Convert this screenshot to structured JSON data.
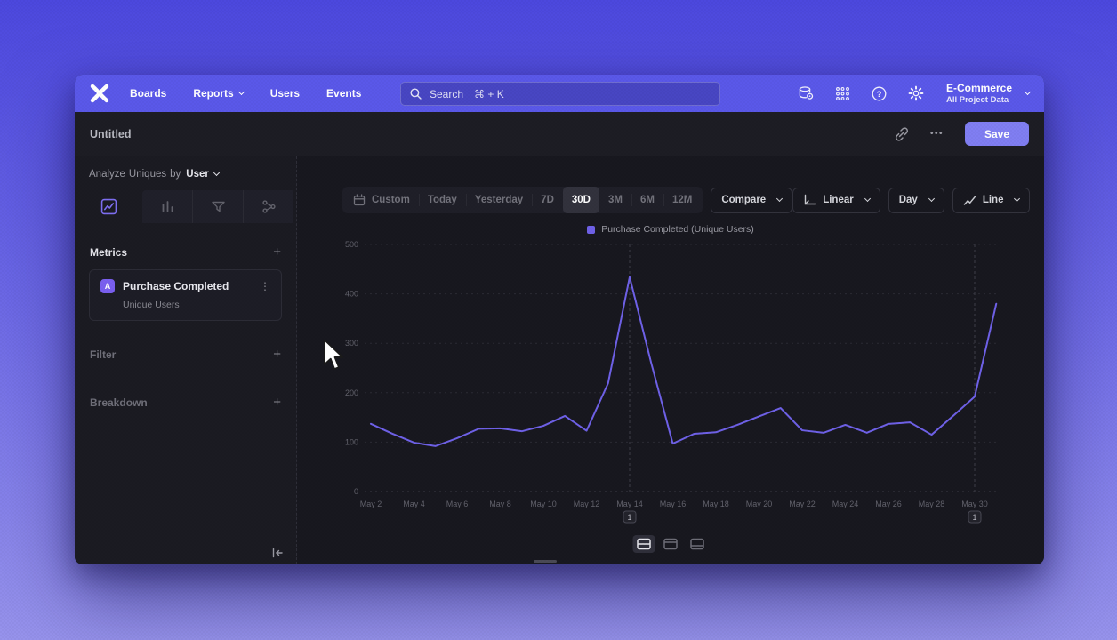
{
  "colors": {
    "nav_accent": "#5a58e9",
    "series": "#6f61e8",
    "save_button": "#807ef2"
  },
  "nav": {
    "logo": "mixpanel-logo",
    "items": [
      "Boards",
      "Reports",
      "Users",
      "Events"
    ],
    "search": {
      "label": "Search",
      "shortcut": "⌘ + K"
    },
    "project": {
      "name": "E-Commerce",
      "scope": "All Project Data"
    }
  },
  "header": {
    "title": "Untitled",
    "menu_ellipsis": "•••",
    "save_label": "Save"
  },
  "sidebar": {
    "analyze": {
      "prefix": "Analyze",
      "entity": "Uniques",
      "by": "by",
      "value": "User"
    },
    "metrics": {
      "title": "Metrics",
      "add": "+"
    },
    "metric_card": {
      "badge": "A",
      "title": "Purchase Completed",
      "subtitle": "Unique Users",
      "menu": "⋮"
    },
    "filter": {
      "title": "Filter",
      "add": "+"
    },
    "breakdown": {
      "title": "Breakdown",
      "add": "+"
    }
  },
  "toolbar": {
    "ranges": [
      "Custom",
      "Today",
      "Yesterday",
      "7D",
      "30D",
      "3M",
      "6M",
      "12M"
    ],
    "active_range": "30D",
    "compare": "Compare",
    "scale": "Linear",
    "interval": "Day",
    "chart_type": "Line"
  },
  "chart_data": {
    "type": "line",
    "legend": "Purchase Completed (Unique Users)",
    "legend_position": "top-center",
    "grid": "horizontal-dashed",
    "ylim": [
      0,
      500
    ],
    "yticks": [
      0,
      100,
      200,
      300,
      400,
      500
    ],
    "x_dates": [
      "May 2",
      "May 3",
      "May 4",
      "May 5",
      "May 6",
      "May 7",
      "May 8",
      "May 9",
      "May 10",
      "May 11",
      "May 12",
      "May 13",
      "May 14",
      "May 15",
      "May 16",
      "May 17",
      "May 18",
      "May 19",
      "May 20",
      "May 21",
      "May 22",
      "May 23",
      "May 24",
      "May 25",
      "May 26",
      "May 27",
      "May 28",
      "May 29",
      "May 30",
      "May 31"
    ],
    "xticks": [
      "May 2",
      "May 4",
      "May 6",
      "May 8",
      "May 10",
      "May 12",
      "May 14",
      "May 16",
      "May 18",
      "May 20",
      "May 22",
      "May 24",
      "May 26",
      "May 28",
      "May 30"
    ],
    "series": [
      {
        "name": "Purchase Completed (Unique Users)",
        "color": "#6f61e8",
        "values": [
          137,
          117,
          99,
          92,
          108,
          127,
          128,
          122,
          133,
          153,
          123,
          219,
          434,
          260,
          97,
          117,
          120,
          135,
          152,
          169,
          124,
          119,
          135,
          119,
          137,
          140,
          115,
          153,
          192,
          380
        ]
      }
    ],
    "annotations": [
      {
        "day_index": 12,
        "date": "May 14",
        "badge": "1"
      },
      {
        "day_index": 28,
        "date": "May 30",
        "badge": "1"
      }
    ]
  },
  "footer": {
    "layout_options": [
      "split",
      "chart-top",
      "chart-bottom"
    ],
    "active_layout": "split"
  }
}
